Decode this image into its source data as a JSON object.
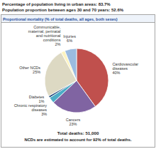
{
  "chart_data": {
    "type": "pie",
    "title": "Proportional mortality (% of total deaths, all ages, both sexes)",
    "annotations": [
      "Percentage of population living in urban areas: 83.7%",
      "Population proportion between ages 30 and 70 years: 52.6%",
      "Total deaths: 51,000",
      "NCDs are estimated to account for 92% of total deaths."
    ],
    "categories": [
      "Cardiovascular diseases",
      "Cancers",
      "Chronic respiratory diseases",
      "Diabetes",
      "Other NCDs",
      "Communicable, maternal, perinatal and nutritional conditions",
      "Injuries"
    ],
    "values": [
      40,
      23,
      3,
      1,
      25,
      2,
      6
    ],
    "value_labels": [
      "40%",
      "23%",
      "3%",
      "1%",
      "25%",
      "2%",
      "6%"
    ],
    "colors": [
      "#c0504d",
      "#8064a2",
      "#4bacc6",
      "#1f497d",
      "#ddd9c3",
      "#fcf3c0",
      "#9bbbe0"
    ],
    "data_labels": true
  }
}
